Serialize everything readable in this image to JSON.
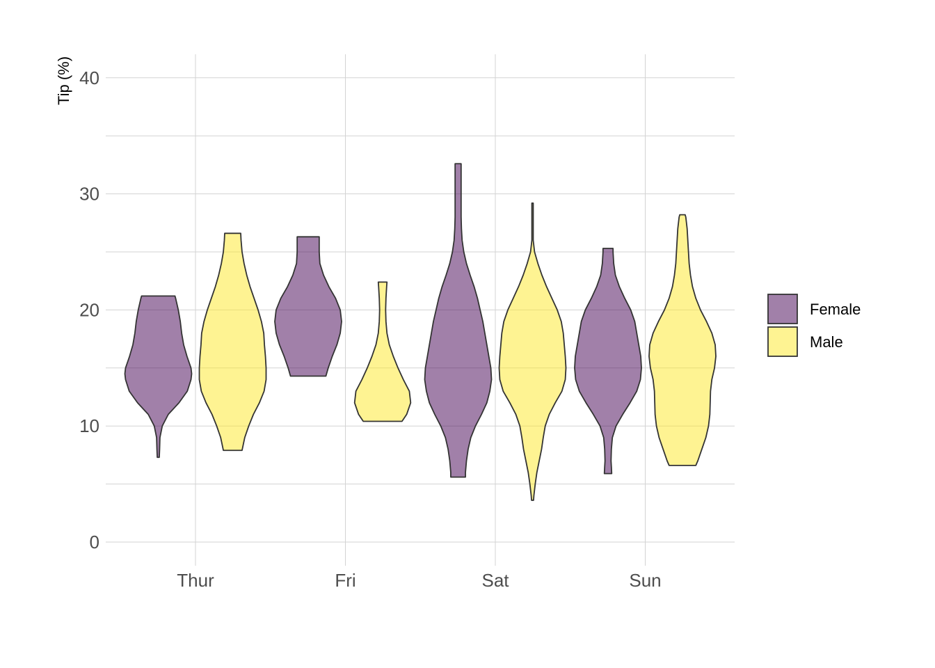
{
  "chart_data": {
    "type": "violin",
    "title": "",
    "xlabel": "",
    "ylabel": "Tip (%)",
    "ylim": [
      -2,
      42
    ],
    "yticks": [
      0,
      10,
      20,
      30,
      40
    ],
    "yticks_minor": [
      5,
      15,
      25,
      35
    ],
    "categories": [
      "Thur",
      "Fri",
      "Sat",
      "Sun"
    ],
    "legend": {
      "position": "right",
      "entries": [
        {
          "name": "Female",
          "color": "#440154"
        },
        {
          "name": "Male",
          "color": "#FDE725"
        }
      ]
    },
    "fill_alpha": 0.5,
    "series": [
      {
        "name": "Female",
        "color": "#440154",
        "violins": [
          {
            "category": "Thur",
            "min": 7.3,
            "max": 21.2,
            "width": 0.62,
            "profile": [
              [
                7.3,
                0.03
              ],
              [
                8,
                0.04
              ],
              [
                9,
                0.05
              ],
              [
                10,
                0.12
              ],
              [
                11,
                0.3
              ],
              [
                12,
                0.62
              ],
              [
                13,
                0.87
              ],
              [
                14,
                0.98
              ],
              [
                14.5,
                1.0
              ],
              [
                15,
                0.98
              ],
              [
                16,
                0.86
              ],
              [
                17,
                0.76
              ],
              [
                18,
                0.7
              ],
              [
                19,
                0.66
              ],
              [
                20,
                0.6
              ],
              [
                21,
                0.52
              ],
              [
                21.2,
                0.5
              ]
            ]
          },
          {
            "category": "Fri",
            "min": 14.3,
            "max": 26.3,
            "width": 0.62,
            "profile": [
              [
                14.3,
                0.53
              ],
              [
                15,
                0.6
              ],
              [
                16,
                0.72
              ],
              [
                17,
                0.86
              ],
              [
                18,
                0.96
              ],
              [
                19,
                1.0
              ],
              [
                20,
                0.96
              ],
              [
                21,
                0.82
              ],
              [
                22,
                0.62
              ],
              [
                23,
                0.46
              ],
              [
                24,
                0.35
              ],
              [
                25,
                0.33
              ],
              [
                26,
                0.33
              ],
              [
                26.3,
                0.33
              ]
            ]
          },
          {
            "category": "Sat",
            "min": 5.6,
            "max": 32.6,
            "width": 0.62,
            "profile": [
              [
                5.6,
                0.22
              ],
              [
                6,
                0.22
              ],
              [
                7,
                0.25
              ],
              [
                8,
                0.3
              ],
              [
                9,
                0.38
              ],
              [
                10,
                0.52
              ],
              [
                11,
                0.7
              ],
              [
                12,
                0.86
              ],
              [
                13,
                0.95
              ],
              [
                14,
                1.0
              ],
              [
                15,
                0.98
              ],
              [
                16,
                0.92
              ],
              [
                17,
                0.86
              ],
              [
                18,
                0.8
              ],
              [
                19,
                0.74
              ],
              [
                20,
                0.66
              ],
              [
                21,
                0.58
              ],
              [
                22,
                0.48
              ],
              [
                23,
                0.36
              ],
              [
                24,
                0.25
              ],
              [
                25,
                0.17
              ],
              [
                26,
                0.12
              ],
              [
                27,
                0.1
              ],
              [
                28,
                0.09
              ],
              [
                29,
                0.09
              ],
              [
                30,
                0.09
              ],
              [
                31,
                0.09
              ],
              [
                32,
                0.09
              ],
              [
                32.6,
                0.09
              ]
            ]
          },
          {
            "category": "Sun",
            "min": 5.9,
            "max": 25.3,
            "width": 0.62,
            "profile": [
              [
                5.9,
                0.11
              ],
              [
                6.5,
                0.1
              ],
              [
                7,
                0.09
              ],
              [
                8,
                0.1
              ],
              [
                9,
                0.13
              ],
              [
                10,
                0.24
              ],
              [
                11,
                0.44
              ],
              [
                12,
                0.66
              ],
              [
                13,
                0.86
              ],
              [
                14,
                0.97
              ],
              [
                15,
                1.0
              ],
              [
                16,
                0.98
              ],
              [
                17,
                0.92
              ],
              [
                18,
                0.86
              ],
              [
                19,
                0.8
              ],
              [
                20,
                0.68
              ],
              [
                21,
                0.5
              ],
              [
                22,
                0.34
              ],
              [
                23,
                0.22
              ],
              [
                24,
                0.17
              ],
              [
                25,
                0.15
              ],
              [
                25.3,
                0.15
              ]
            ]
          }
        ]
      },
      {
        "name": "Male",
        "color": "#FDE725",
        "violins": [
          {
            "category": "Thur",
            "min": 7.9,
            "max": 26.6,
            "width": 0.62,
            "profile": [
              [
                7.9,
                0.28
              ],
              [
                9,
                0.36
              ],
              [
                10,
                0.48
              ],
              [
                11,
                0.62
              ],
              [
                12,
                0.8
              ],
              [
                13,
                0.94
              ],
              [
                14,
                1.0
              ],
              [
                15,
                1.0
              ],
              [
                16,
                0.98
              ],
              [
                17,
                0.95
              ],
              [
                18,
                0.93
              ],
              [
                19,
                0.86
              ],
              [
                20,
                0.76
              ],
              [
                21,
                0.64
              ],
              [
                22,
                0.52
              ],
              [
                23,
                0.42
              ],
              [
                24,
                0.34
              ],
              [
                25,
                0.28
              ],
              [
                26,
                0.25
              ],
              [
                26.6,
                0.24
              ]
            ]
          },
          {
            "category": "Fri",
            "min": 10.4,
            "max": 22.4,
            "width": 0.62,
            "profile": [
              [
                10.4,
                0.58
              ],
              [
                11,
                0.72
              ],
              [
                12,
                0.84
              ],
              [
                13,
                0.8
              ],
              [
                14,
                0.62
              ],
              [
                15,
                0.46
              ],
              [
                16,
                0.32
              ],
              [
                17,
                0.2
              ],
              [
                18,
                0.13
              ],
              [
                19,
                0.1
              ],
              [
                20,
                0.09
              ],
              [
                21,
                0.1
              ],
              [
                22,
                0.12
              ],
              [
                22.4,
                0.13
              ]
            ]
          },
          {
            "category": "Sat",
            "min": 3.6,
            "max": 29.2,
            "width": 0.62,
            "profile": [
              [
                3.6,
                0.03
              ],
              [
                4,
                0.04
              ],
              [
                5,
                0.08
              ],
              [
                6,
                0.13
              ],
              [
                7,
                0.2
              ],
              [
                8,
                0.27
              ],
              [
                9,
                0.32
              ],
              [
                10,
                0.38
              ],
              [
                11,
                0.5
              ],
              [
                12,
                0.68
              ],
              [
                13,
                0.88
              ],
              [
                14,
                0.98
              ],
              [
                15,
                1.0
              ],
              [
                16,
                0.98
              ],
              [
                17,
                0.95
              ],
              [
                18,
                0.92
              ],
              [
                19,
                0.86
              ],
              [
                20,
                0.74
              ],
              [
                21,
                0.58
              ],
              [
                22,
                0.42
              ],
              [
                23,
                0.28
              ],
              [
                24,
                0.16
              ],
              [
                25,
                0.06
              ],
              [
                26,
                0.02
              ],
              [
                27,
                0.02
              ],
              [
                28,
                0.02
              ],
              [
                29,
                0.02
              ],
              [
                29.2,
                0.02
              ]
            ]
          },
          {
            "category": "Sun",
            "min": 6.6,
            "max": 28.2,
            "width": 0.62,
            "profile": [
              [
                6.6,
                0.4
              ],
              [
                7,
                0.46
              ],
              [
                8,
                0.58
              ],
              [
                9,
                0.7
              ],
              [
                10,
                0.78
              ],
              [
                11,
                0.82
              ],
              [
                12,
                0.83
              ],
              [
                13,
                0.84
              ],
              [
                14,
                0.88
              ],
              [
                15,
                0.96
              ],
              [
                16,
                1.0
              ],
              [
                17,
                0.98
              ],
              [
                18,
                0.88
              ],
              [
                19,
                0.72
              ],
              [
                20,
                0.54
              ],
              [
                21,
                0.4
              ],
              [
                22,
                0.3
              ],
              [
                23,
                0.24
              ],
              [
                24,
                0.2
              ],
              [
                25,
                0.18
              ],
              [
                26,
                0.16
              ],
              [
                27,
                0.14
              ],
              [
                28,
                0.1
              ],
              [
                28.2,
                0.08
              ]
            ]
          }
        ]
      }
    ]
  }
}
